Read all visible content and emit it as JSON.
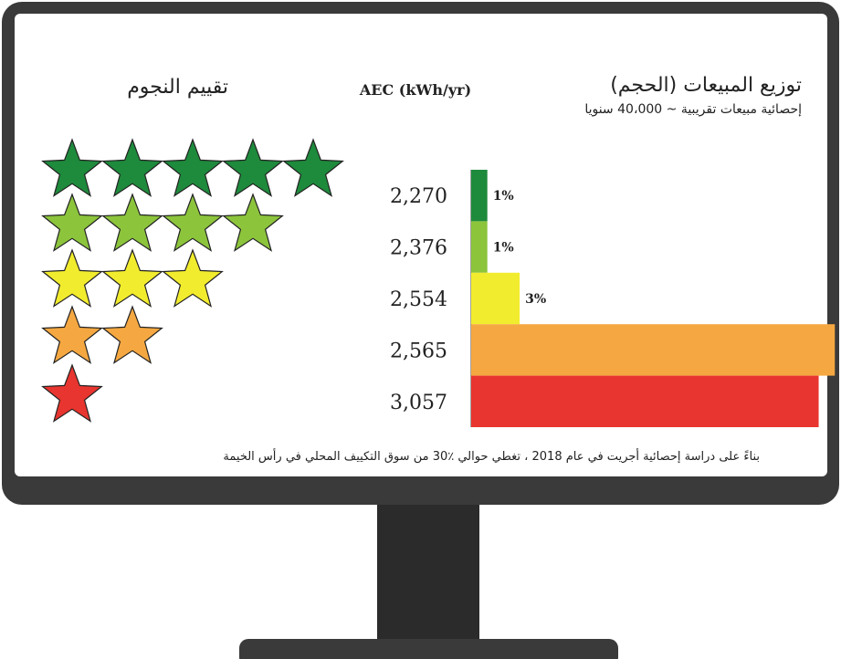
{
  "chart_data": {
    "type": "bar",
    "orientation": "horizontal",
    "title": "توزيع المبيعات (الحجم)",
    "subtitle": "إحصائية مبيعات تقريبية ~ 40،000 سنويا",
    "axis_label": "AEC (kWh/yr)",
    "stars_title": "تقييم النجوم",
    "note": "بناءً على دراسة إحصائية أجريت في عام 2018 ، تغطي حوالي ٪30 من سوق التكييف المحلي في رأس الخيمة",
    "categories": [
      "2,270",
      "2,376",
      "2,554",
      "2,565",
      "3,057"
    ],
    "values": [
      1,
      1,
      3,
      22.5,
      21.5
    ],
    "value_labels": [
      "1%",
      "1%",
      "3%",
      null,
      null
    ],
    "stars": [
      5,
      4,
      3,
      2,
      1
    ],
    "colors": [
      "#1e8a3c",
      "#8cc43c",
      "#f2ec2e",
      "#f5a841",
      "#e8352f"
    ]
  }
}
